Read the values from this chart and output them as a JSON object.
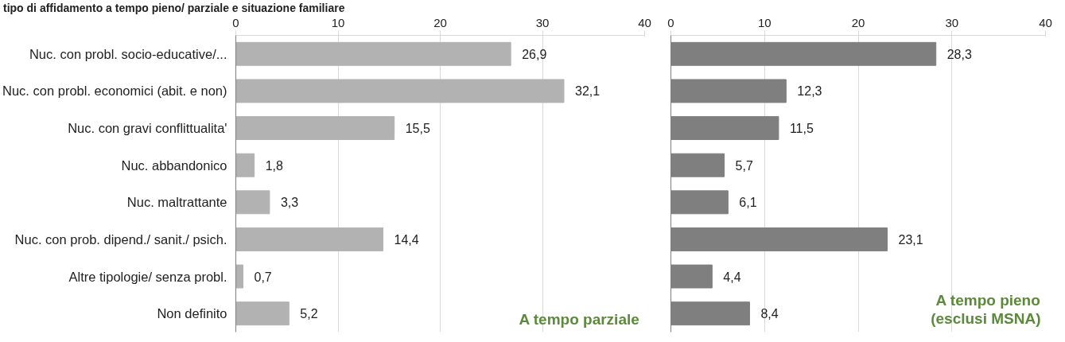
{
  "chart_data": [
    {
      "type": "bar",
      "orientation": "horizontal",
      "title": "tipo di affidamento a tempo pieno/ parziale e situazione familiare",
      "categories": [
        "Nuc. con probl. socio-educative/...",
        "Nuc. con probl. economici (abit. e non)",
        "Nuc. con gravi conflittualita'",
        "Nuc. abbandonico",
        "Nuc. maltrattante",
        "Nuc. con prob. dipend./ sanit./ psich.",
        "Altre tipologie/ senza probl.",
        "Non definito"
      ],
      "values": [
        26.9,
        32.1,
        15.5,
        1.8,
        3.3,
        14.4,
        0.7,
        5.2
      ],
      "value_labels": [
        "26,9",
        "32,1",
        "15,5",
        "1,8",
        "3,3",
        "14,4",
        "0,7",
        "5,2"
      ],
      "color": "#b2b2b2",
      "xlim": [
        0,
        40
      ],
      "xticks": [
        0,
        10,
        20,
        30,
        40
      ],
      "grid": "x",
      "annotations": [
        "A tempo parziale"
      ]
    },
    {
      "type": "bar",
      "orientation": "horizontal",
      "categories": [
        null,
        null,
        null,
        null,
        null,
        null,
        null,
        null
      ],
      "values": [
        28.3,
        12.3,
        11.5,
        5.7,
        6.1,
        23.1,
        4.4,
        8.4
      ],
      "value_labels": [
        "28,3",
        "12,3",
        "11,5",
        "5,7",
        "6,1",
        "23,1",
        "4,4",
        "8,4"
      ],
      "color": "#7f7f7f",
      "xlim": [
        0,
        40
      ],
      "xticks": [
        0,
        10,
        20,
        30,
        40
      ],
      "grid": "x",
      "tick_labels": "x",
      "annotations": [
        "A tempo pieno\n(esclusi MSNA)"
      ]
    }
  ]
}
